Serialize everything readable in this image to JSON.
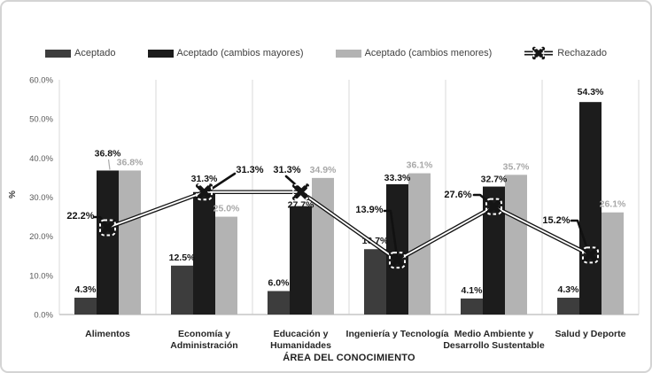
{
  "colors": {
    "bar_aceptado": "#3d3d3d",
    "bar_cambios_mayores": "#1c1c1c",
    "bar_cambios_menores": "#b3b3b3",
    "rechazado_line": "#141414",
    "gray_label_text": "#a8a8a8",
    "axis_gray": "#d9d9d9",
    "frame_border": "#d4d4d4"
  },
  "legend": {
    "items": [
      {
        "key": "aceptado",
        "label": "Aceptado",
        "type": "bar",
        "color": "#3d3d3d"
      },
      {
        "key": "aceptado-cambios-mayores",
        "label": "Aceptado (cambios mayores)",
        "type": "bar",
        "color": "#1c1c1c"
      },
      {
        "key": "aceptado-cambios-menores",
        "label": "Aceptado (cambios menores)",
        "type": "bar",
        "color": "#b3b3b3"
      },
      {
        "key": "rechazado",
        "label": "Rechazado",
        "type": "line-marker",
        "color": "#141414"
      }
    ]
  },
  "chart_data": {
    "type": "bar",
    "subtype": "grouped bars with overlaid line series (double-line style, X markers)",
    "categories": [
      "Alimentos",
      "Economía y\nAdministración",
      "Educación y\nHumanidades",
      "Ingeniería y Tecnología",
      "Medio Ambiente y\nDesarrollo Sustentable",
      "Salud y Deporte"
    ],
    "series": [
      {
        "name": "Aceptado",
        "style": "bar",
        "color": "#3d3d3d",
        "values": [
          4.3,
          12.5,
          6.0,
          16.7,
          4.1,
          4.3
        ],
        "labels": [
          "4.3%",
          "12.5%",
          "6.0%",
          "16.7%",
          "4.1%",
          "4.3%"
        ]
      },
      {
        "name": "Aceptado (cambios mayores)",
        "style": "bar",
        "color": "#1c1c1c",
        "values": [
          36.8,
          31.3,
          27.7,
          33.3,
          32.7,
          54.3
        ],
        "labels": [
          "36.8%",
          "31.3%",
          "27.7%",
          "33.3%",
          "32.7%",
          "54.3%"
        ]
      },
      {
        "name": "Aceptado (cambios menores)",
        "style": "bar",
        "color": "#b3b3b3",
        "values": [
          36.8,
          25.0,
          34.9,
          36.1,
          35.7,
          26.1
        ],
        "labels": [
          "36.8%",
          "25.0%",
          "34.9%",
          "36.1%",
          "35.7%",
          "26.1%"
        ]
      },
      {
        "name": "Rechazado",
        "style": "line",
        "color": "#141414",
        "values": [
          22.2,
          31.3,
          31.3,
          13.9,
          27.6,
          15.2
        ],
        "labels": [
          "22.2%",
          "31.3%",
          "31.3%",
          "13.9%",
          "27.6%",
          "15.2%"
        ]
      }
    ],
    "title": "",
    "xlabel": "ÁREA DEL CONOCIMIENTO",
    "ylabel": "%",
    "ylim": [
      0,
      60
    ],
    "yticks": [
      "0.0%",
      "10.0%",
      "20.0%",
      "30.0%",
      "40.0%",
      "50.0%",
      "60.0%"
    ],
    "grid": "vertical category separators only, no horizontal gridlines",
    "legend_position": "top center"
  }
}
